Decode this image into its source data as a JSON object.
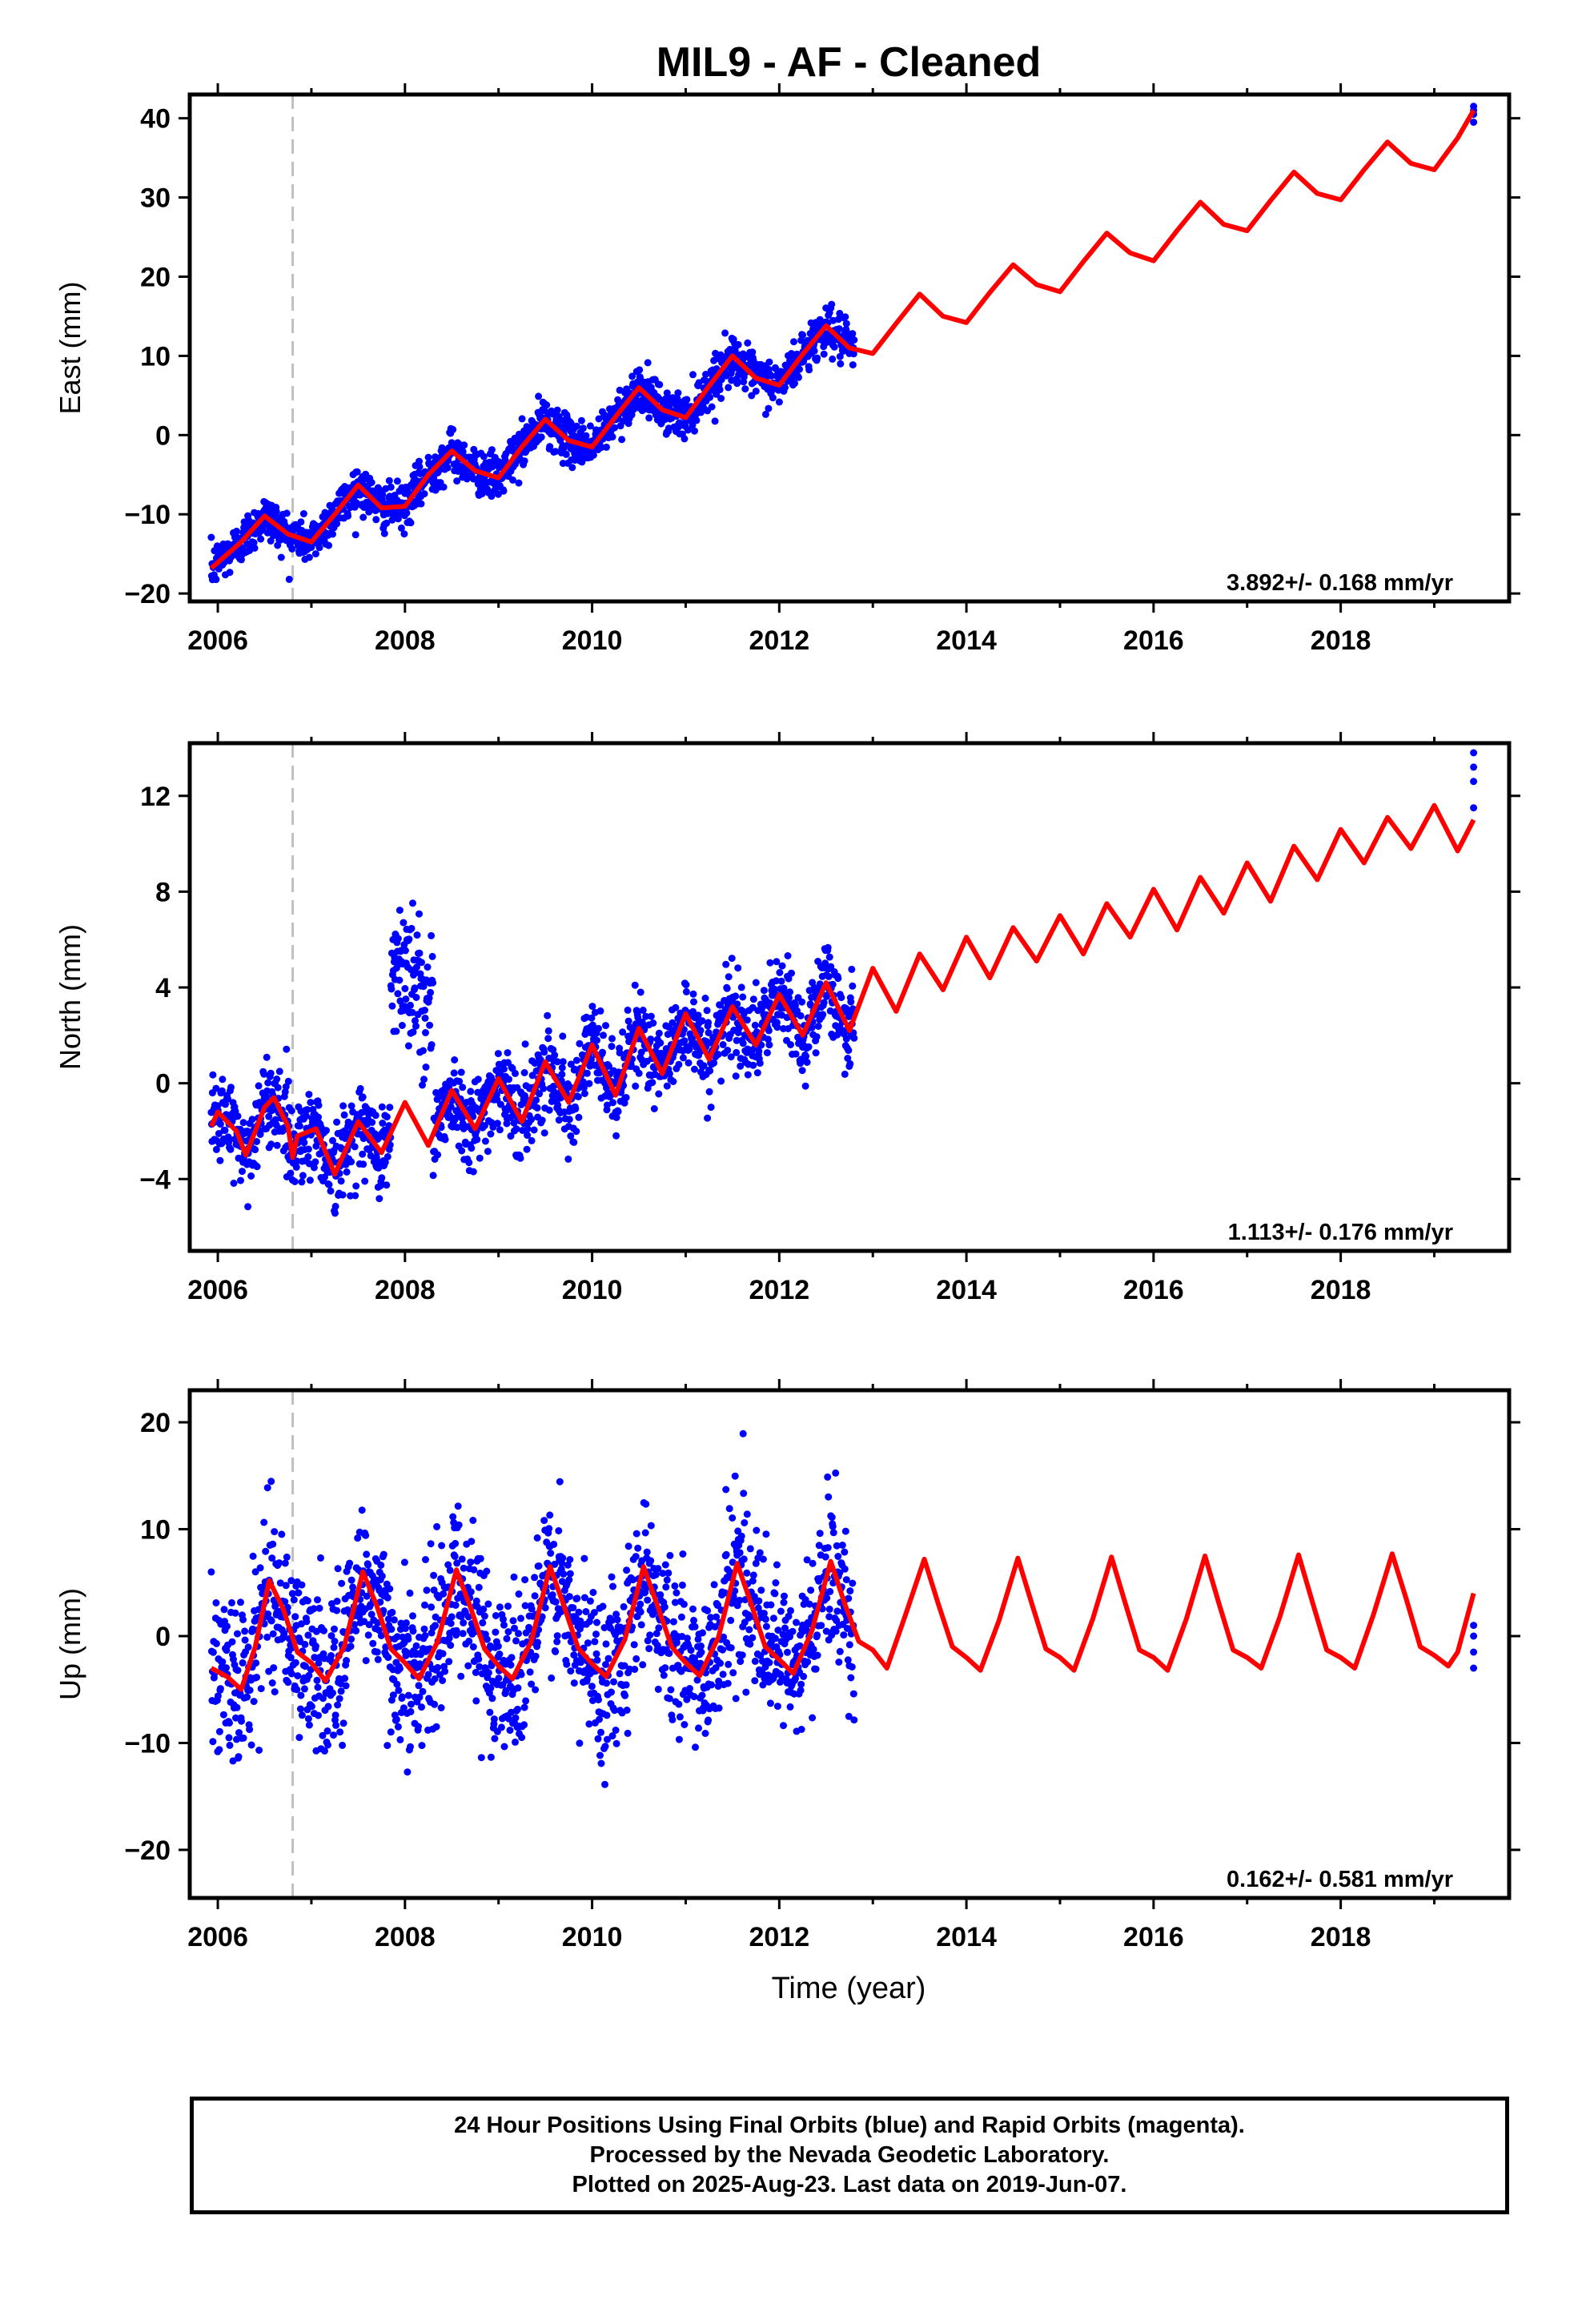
{
  "title": "MIL9  - AF - Cleaned",
  "x_axis_label": "Time (year)",
  "caption": [
    "24 Hour Positions Using Final Orbits (blue) and Rapid Orbits (magenta).",
    "Processed by the Nevada Geodetic Laboratory.",
    "Plotted on 2025-Aug-23. Last data on 2019-Jun-07."
  ],
  "colors": {
    "data_points": "#0000ff",
    "model_line": "#ff0000",
    "marker_line": "#c0c0c0",
    "axes": "#000000"
  },
  "chart_data": [
    {
      "type": "scatter",
      "ylabel": "East (mm)",
      "rate_text": "3.892+/- 0.168 mm/yr",
      "xlim": [
        2005.7,
        2019.8
      ],
      "ylim": [
        -21,
        43
      ],
      "xticks": [
        "2006",
        "2008",
        "2010",
        "2012",
        "2014",
        "2016",
        "2018"
      ],
      "yticks": [
        "-20",
        "-10",
        "0",
        "10",
        "20",
        "30",
        "40"
      ],
      "vertical_marker_x": 2006.8,
      "data_range": [
        2005.93,
        2012.8
      ],
      "extra_points": {
        "x": [
          2019.42
        ],
        "y": [
          39.5,
          40.5,
          41.0,
          41.5
        ]
      },
      "series": [
        {
          "name": "model",
          "x": [
            2005.93,
            2006.25,
            2006.5,
            2006.75,
            2007.0,
            2007.25,
            2007.5,
            2007.75,
            2008.0,
            2008.25,
            2008.5,
            2008.75,
            2009.0,
            2009.25,
            2009.5,
            2009.75,
            2010.0,
            2010.25,
            2010.5,
            2010.75,
            2011.0,
            2011.25,
            2011.5,
            2011.75,
            2012.0,
            2012.25,
            2012.5,
            2012.75,
            2013.0,
            2013.25,
            2013.5,
            2013.75,
            2014.0,
            2014.25,
            2014.5,
            2014.75,
            2015.0,
            2015.25,
            2015.5,
            2015.75,
            2016.0,
            2016.25,
            2016.5,
            2016.75,
            2017.0,
            2017.25,
            2017.5,
            2017.75,
            2018.0,
            2018.25,
            2018.5,
            2018.75,
            2019.0,
            2019.25,
            2019.42
          ],
          "y": [
            -16.8,
            -13.5,
            -10.2,
            -12.5,
            -13.5,
            -10.0,
            -6.3,
            -9.2,
            -9.0,
            -5.0,
            -2.0,
            -4.5,
            -5.4,
            -1.5,
            2.0,
            -0.7,
            -1.5,
            2.3,
            6.0,
            3.2,
            2.2,
            6.2,
            10.0,
            7.2,
            6.3,
            10.2,
            13.8,
            11.0,
            10.3,
            14.1,
            17.8,
            15.0,
            14.2,
            18.0,
            21.5,
            19.0,
            18.1,
            21.9,
            25.5,
            23.0,
            22.0,
            25.8,
            29.4,
            26.6,
            25.8,
            29.6,
            33.2,
            30.5,
            29.7,
            33.5,
            37.0,
            34.3,
            33.5,
            37.5,
            41.0
          ]
        }
      ]
    },
    {
      "type": "scatter",
      "ylabel": "North (mm)",
      "rate_text": "1.113+/- 0.176 mm/yr",
      "xlim": [
        2005.7,
        2019.8
      ],
      "ylim": [
        -7.0,
        14.2
      ],
      "xticks": [
        "2006",
        "2008",
        "2010",
        "2012",
        "2014",
        "2016",
        "2018"
      ],
      "yticks": [
        "-4",
        "0",
        "4",
        "8",
        "12"
      ],
      "vertical_marker_x": 2006.8,
      "data_range": [
        2005.93,
        2012.8
      ],
      "extra_points": {
        "x": [
          2019.42
        ],
        "y": [
          11.5,
          12.6,
          13.2,
          13.8
        ]
      },
      "series": [
        {
          "name": "model",
          "x": [
            2005.93,
            2006.0,
            2006.2,
            2006.3,
            2006.5,
            2006.6,
            2006.75,
            2006.8,
            2006.85,
            2007.05,
            2007.25,
            2007.5,
            2007.75,
            2008.0,
            2008.25,
            2008.5,
            2008.75,
            2009.0,
            2009.25,
            2009.5,
            2009.75,
            2010.0,
            2010.25,
            2010.5,
            2010.75,
            2011.0,
            2011.25,
            2011.5,
            2011.75,
            2012.0,
            2012.25,
            2012.5,
            2012.75,
            2013.0,
            2013.25,
            2013.5,
            2013.75,
            2014.0,
            2014.25,
            2014.5,
            2014.75,
            2015.0,
            2015.25,
            2015.5,
            2015.75,
            2016.0,
            2016.25,
            2016.5,
            2016.75,
            2017.0,
            2017.25,
            2017.5,
            2017.75,
            2018.0,
            2018.25,
            2018.5,
            2018.75,
            2019.0,
            2019.25,
            2019.42
          ],
          "y": [
            -1.8,
            -1.2,
            -2.0,
            -3.0,
            -1.0,
            -0.6,
            -1.8,
            -3.1,
            -2.2,
            -1.9,
            -3.8,
            -1.6,
            -2.9,
            -0.8,
            -2.6,
            -0.3,
            -1.9,
            0.2,
            -1.6,
            0.9,
            -0.8,
            1.6,
            -0.5,
            2.3,
            0.4,
            2.9,
            1.0,
            3.2,
            1.6,
            3.7,
            2.0,
            4.2,
            2.2,
            4.8,
            3.0,
            5.4,
            3.9,
            6.1,
            4.4,
            6.5,
            5.1,
            7.0,
            5.4,
            7.5,
            6.1,
            8.1,
            6.4,
            8.6,
            7.1,
            9.2,
            7.6,
            9.9,
            8.5,
            10.6,
            9.2,
            11.1,
            9.8,
            11.6,
            9.7,
            11.0
          ]
        }
      ]
    },
    {
      "type": "scatter",
      "ylabel": "Up (mm)",
      "rate_text": "0.162+/- 0.581 mm/yr",
      "xlim": [
        2005.7,
        2019.8
      ],
      "ylim": [
        -24.5,
        23
      ],
      "xticks": [
        "2006",
        "2008",
        "2010",
        "2012",
        "2014",
        "2016",
        "2018"
      ],
      "yticks": [
        "-20",
        "-10",
        "0",
        "10",
        "20"
      ],
      "vertical_marker_x": 2006.8,
      "data_range": [
        2005.93,
        2012.8
      ],
      "extra_points": {
        "x": [
          2019.42
        ],
        "y": [
          -3.0,
          -1.5,
          0.0,
          1.0
        ]
      },
      "series": [
        {
          "name": "model",
          "x": [
            2005.93,
            2006.1,
            2006.25,
            2006.4,
            2006.55,
            2006.7,
            2006.85,
            2007.0,
            2007.15,
            2007.35,
            2007.55,
            2007.7,
            2007.85,
            2008.0,
            2008.15,
            2008.35,
            2008.55,
            2008.7,
            2008.85,
            2009.0,
            2009.15,
            2009.35,
            2009.55,
            2009.7,
            2009.85,
            2010.0,
            2010.15,
            2010.35,
            2010.55,
            2010.7,
            2010.85,
            2011.0,
            2011.15,
            2011.35,
            2011.55,
            2011.7,
            2011.85,
            2012.0,
            2012.15,
            2012.35,
            2012.55,
            2012.7,
            2012.85,
            2013.0,
            2013.15,
            2013.35,
            2013.55,
            2013.7,
            2013.85,
            2014.0,
            2014.15,
            2014.35,
            2014.55,
            2014.7,
            2014.85,
            2015.0,
            2015.15,
            2015.35,
            2015.55,
            2015.7,
            2015.85,
            2016.0,
            2016.15,
            2016.35,
            2016.55,
            2016.7,
            2016.85,
            2017.0,
            2017.15,
            2017.35,
            2017.55,
            2017.7,
            2017.85,
            2018.0,
            2018.15,
            2018.35,
            2018.55,
            2018.7,
            2018.85,
            2019.0,
            2019.15,
            2019.25,
            2019.42
          ],
          "y": [
            -3.0,
            -3.8,
            -5.0,
            -1.0,
            5.2,
            2.5,
            -1.5,
            -2.5,
            -4.2,
            -1.0,
            6.0,
            2.8,
            -1.2,
            -2.5,
            -4.0,
            -0.5,
            6.2,
            2.7,
            -1.2,
            -2.8,
            -4.0,
            -0.5,
            6.5,
            2.8,
            -1.1,
            -2.6,
            -3.8,
            -0.3,
            6.5,
            2.8,
            -1.0,
            -2.5,
            -3.7,
            -0.1,
            6.8,
            3.0,
            -1.0,
            -2.2,
            -3.5,
            0.5,
            7.0,
            3.0,
            -0.5,
            -1.3,
            -3.0,
            2.0,
            7.2,
            3.0,
            -1.0,
            -2.0,
            -3.2,
            1.5,
            7.3,
            3.0,
            -1.2,
            -2.0,
            -3.2,
            1.6,
            7.4,
            3.0,
            -1.3,
            -2.0,
            -3.2,
            1.6,
            7.5,
            3.0,
            -1.3,
            -2.0,
            -3.0,
            1.8,
            7.6,
            3.1,
            -1.3,
            -2.0,
            -3.0,
            2.0,
            7.7,
            3.5,
            -1.0,
            -1.8,
            -2.8,
            -1.5,
            4.0
          ]
        }
      ]
    }
  ]
}
